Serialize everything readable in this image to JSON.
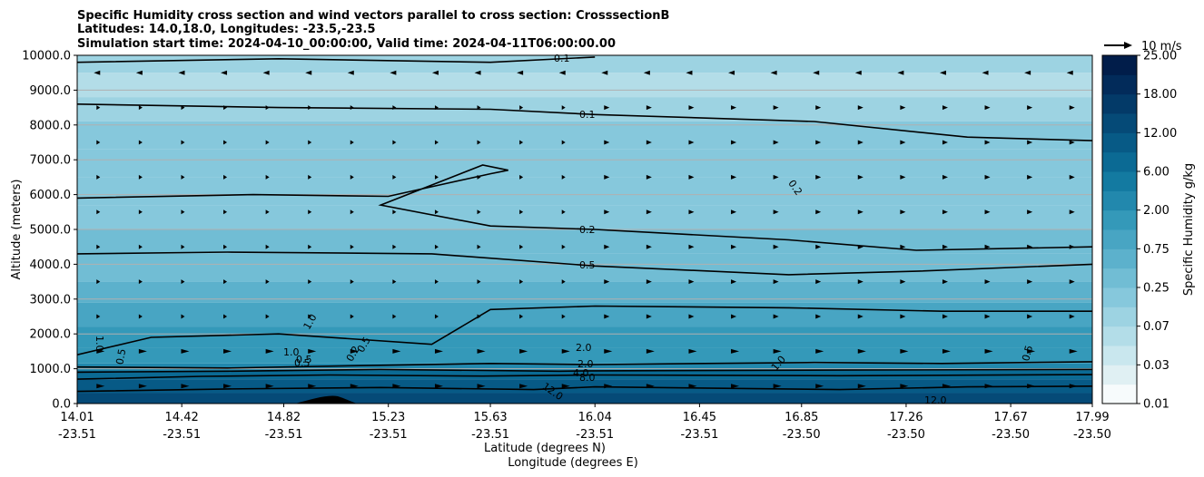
{
  "chart_data": {
    "type": "contour",
    "title_lines": [
      "Specific Humidity cross section and wind vectors parallel to cross section: CrosssectionB",
      "Latitudes: 14.0,18.0, Longitudes: -23.5,-23.5",
      "Simulation start time: 2024-04-10_00:00:00, Valid time: 2024-04-11T06:00:00.00"
    ],
    "ylabel": "Altitude (meters)",
    "xlabel_lat": "Latitude (degrees N)",
    "xlabel_lon": "Longitude (degrees E)",
    "ylim": [
      0,
      10000
    ],
    "y_ticks": [
      "0.0",
      "1000.0",
      "2000.0",
      "3000.0",
      "4000.0",
      "5000.0",
      "6000.0",
      "7000.0",
      "8000.0",
      "9000.0",
      "10000.0"
    ],
    "x_ticks": [
      {
        "lat": "14.01",
        "lon": "-23.51"
      },
      {
        "lat": "14.42",
        "lon": "-23.51"
      },
      {
        "lat": "14.82",
        "lon": "-23.51"
      },
      {
        "lat": "15.23",
        "lon": "-23.51"
      },
      {
        "lat": "15.63",
        "lon": "-23.51"
      },
      {
        "lat": "16.04",
        "lon": "-23.51"
      },
      {
        "lat": "16.45",
        "lon": "-23.51"
      },
      {
        "lat": "16.85",
        "lon": "-23.50"
      },
      {
        "lat": "17.26",
        "lon": "-23.50"
      },
      {
        "lat": "17.67",
        "lon": "-23.50"
      },
      {
        "lat": "17.99",
        "lon": "-23.50"
      }
    ],
    "colorbar": {
      "label": "Specific Humidity g/kg",
      "tick_labels": [
        "0.01",
        "0.03",
        "0.07",
        "0.25",
        "0.75",
        "2.00",
        "6.00",
        "12.00",
        "18.00",
        "25.00"
      ],
      "levels": [
        0.01,
        0.02,
        0.03,
        0.05,
        0.07,
        0.1,
        0.25,
        0.5,
        0.75,
        1.0,
        2.0,
        4.0,
        6.0,
        8.0,
        12.0,
        15.0,
        18.0,
        21.0,
        25.0
      ],
      "colors": [
        "#f7fbfc",
        "#e0f0f3",
        "#c9e7ee",
        "#b3dde8",
        "#9dd3e2",
        "#86c8dc",
        "#71bdd4",
        "#5cb1cc",
        "#48a5c3",
        "#3499b9",
        "#2288ad",
        "#137aa1",
        "#0b6a94",
        "#075a86",
        "#054a77",
        "#033a68",
        "#022b5a",
        "#011d4a"
      ]
    },
    "wind_key": {
      "label": "10 m/s",
      "speed": 10
    },
    "contour_labels": [
      "0.1",
      "0.1",
      "0.2",
      "0.2",
      "0.5",
      "1.0",
      "1.0",
      "1.0",
      "0.5",
      "0.5",
      "0.2",
      "0.5",
      "0.5",
      "2.0",
      "2.0",
      "4.0",
      "8.0",
      "12.0",
      "12.0",
      "1.0",
      "0.5"
    ],
    "humidity_bands": [
      {
        "alt_top": 300,
        "value": 14.0
      },
      {
        "alt_top": 700,
        "value": 10.0
      },
      {
        "alt_top": 950,
        "value": 6.0
      },
      {
        "alt_top": 1150,
        "value": 3.0
      },
      {
        "alt_top": 1600,
        "value": 1.6
      },
      {
        "alt_top": 2200,
        "value": 1.0
      },
      {
        "alt_top": 2900,
        "value": 0.8
      },
      {
        "alt_top": 3500,
        "value": 0.6
      },
      {
        "alt_top": 4300,
        "value": 0.45
      },
      {
        "alt_top": 5000,
        "value": 0.3
      },
      {
        "alt_top": 5700,
        "value": 0.22
      },
      {
        "alt_top": 6500,
        "value": 0.18
      },
      {
        "alt_top": 7300,
        "value": 0.14
      },
      {
        "alt_top": 8100,
        "value": 0.11
      },
      {
        "alt_top": 8800,
        "value": 0.08
      },
      {
        "alt_top": 9500,
        "value": 0.05
      },
      {
        "alt_top": 10000,
        "value": 0.07
      }
    ],
    "isolines": [
      {
        "value": 12.0,
        "points": [
          [
            14.01,
            350
          ],
          [
            14.6,
            420
          ],
          [
            15.2,
            460
          ],
          [
            15.8,
            400
          ],
          [
            16.04,
            480
          ],
          [
            17.0,
            400
          ],
          [
            17.5,
            480
          ],
          [
            17.99,
            500
          ]
        ]
      },
      {
        "value": 8.0,
        "points": [
          [
            14.01,
            700
          ],
          [
            14.5,
            780
          ],
          [
            15.0,
            820
          ],
          [
            15.6,
            790
          ],
          [
            16.04,
            820
          ],
          [
            17.0,
            800
          ],
          [
            17.99,
            830
          ]
        ]
      },
      {
        "value": 4.0,
        "points": [
          [
            14.01,
            900
          ],
          [
            14.6,
            930
          ],
          [
            15.2,
            980
          ],
          [
            15.9,
            930
          ],
          [
            16.04,
            940
          ],
          [
            17.0,
            960
          ],
          [
            17.99,
            980
          ]
        ]
      },
      {
        "value": 2.0,
        "points": [
          [
            14.01,
            1050
          ],
          [
            14.6,
            1020
          ],
          [
            15.2,
            1100
          ],
          [
            15.63,
            1150
          ],
          [
            16.04,
            1120
          ],
          [
            16.9,
            1180
          ],
          [
            17.4,
            1150
          ],
          [
            17.99,
            1200
          ]
        ]
      },
      {
        "value": 1.0,
        "points": [
          [
            14.01,
            1400
          ],
          [
            14.3,
            1900
          ],
          [
            14.8,
            2000
          ],
          [
            15.4,
            1700
          ],
          [
            15.63,
            2700
          ],
          [
            16.04,
            2800
          ],
          [
            16.8,
            2750
          ],
          [
            17.4,
            2650
          ],
          [
            17.99,
            2650
          ]
        ]
      },
      {
        "value": 0.5,
        "points": [
          [
            14.01,
            4300
          ],
          [
            14.6,
            4350
          ],
          [
            15.4,
            4300
          ],
          [
            16.04,
            3950
          ],
          [
            16.8,
            3700
          ],
          [
            17.3,
            3800
          ],
          [
            17.99,
            4000
          ]
        ]
      },
      {
        "value": 0.2,
        "points": [
          [
            14.01,
            5900
          ],
          [
            14.7,
            6000
          ],
          [
            15.23,
            5950
          ],
          [
            15.63,
            6600
          ],
          [
            15.7,
            6700
          ],
          [
            15.6,
            6850
          ],
          [
            15.2,
            5700
          ],
          [
            15.63,
            5100
          ],
          [
            16.04,
            5000
          ],
          [
            16.8,
            4700
          ],
          [
            17.3,
            4400
          ],
          [
            17.99,
            4500
          ]
        ]
      },
      {
        "value": 0.1,
        "points": [
          [
            14.01,
            8600
          ],
          [
            14.8,
            8500
          ],
          [
            15.63,
            8450
          ],
          [
            16.04,
            8300
          ],
          [
            16.9,
            8100
          ],
          [
            17.5,
            7650
          ],
          [
            17.99,
            7550
          ]
        ]
      },
      {
        "value": 0.1,
        "points": [
          [
            14.01,
            9800
          ],
          [
            14.8,
            9900
          ],
          [
            15.63,
            9800
          ],
          [
            16.04,
            9950
          ]
        ]
      }
    ]
  }
}
